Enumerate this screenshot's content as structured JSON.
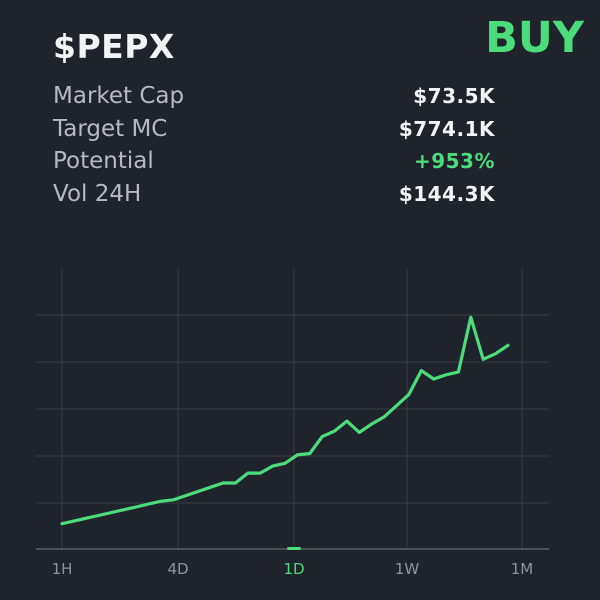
{
  "header": {
    "ticker": "$PEPX",
    "action": "BUY"
  },
  "stats": [
    {
      "label": "Market Cap",
      "value": "$73.5K"
    },
    {
      "label": "Target MC",
      "value": "$774.1K"
    },
    {
      "label": "Potential",
      "value": "+953%",
      "positive": true
    },
    {
      "label": "Vol 24H",
      "value": "$144.3K"
    }
  ],
  "colors": {
    "background": "#1f232b",
    "accent": "#4cdc7c",
    "grid": "#3a3e47",
    "text_muted": "#8f949c"
  },
  "chart_data": {
    "type": "line",
    "grid": true,
    "x_tick_labels": [
      "1H",
      "4D",
      "1D",
      "1W",
      "1M"
    ],
    "selected_range": "1D",
    "y_tick_labels": [],
    "ylim": [
      0,
      100
    ],
    "series": [
      {
        "values": [
          9,
          10,
          11,
          12,
          13,
          14,
          15,
          16,
          17,
          17.5,
          19,
          20.5,
          22,
          23.5,
          23.5,
          27,
          27,
          29.5,
          30.5,
          33.5,
          34,
          40,
          42,
          45.5,
          41.5,
          44.5,
          47,
          51,
          55,
          63.5,
          60.5,
          62,
          63,
          82.5,
          67.5,
          69.5,
          72.5
        ]
      }
    ]
  }
}
